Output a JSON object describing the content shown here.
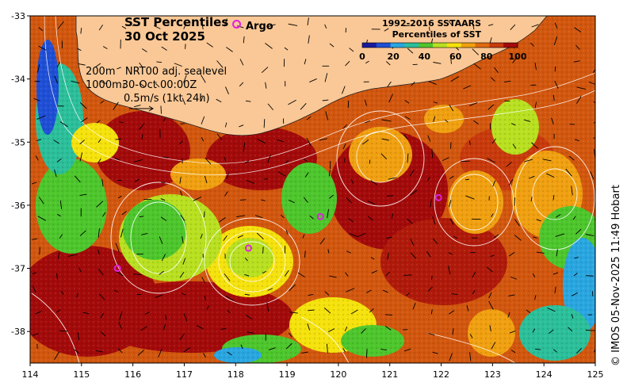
{
  "title_line1": "SST Percentiles",
  "title_line2": "30 Oct 2025",
  "argo_label": "Argo",
  "legend": {
    "title_line1": "1992-2016 SSTAARS",
    "title_line2": "Percentiles of SST",
    "ticks": [
      "0",
      "20",
      "40",
      "60",
      "80",
      "100"
    ],
    "colors": [
      "#1a1a9c",
      "#1f4fd6",
      "#29a6e0",
      "#2bbf9a",
      "#4dc62c",
      "#b8e020",
      "#f5e20c",
      "#f0a010",
      "#e06a10",
      "#c83a0c",
      "#a30a0a"
    ]
  },
  "info": {
    "depth_200": "200m",
    "depth_1000": "1000m",
    "product": "NRT00 adj. sealevel",
    "time": "30-Oct 00:00Z",
    "scale": "0.5m/s (1kt 24h)"
  },
  "credit": "© IMOS 05-Nov-2025 11:49 Hobart",
  "axes": {
    "x_ticks": [
      "114",
      "115",
      "116",
      "117",
      "118",
      "119",
      "120",
      "121",
      "122",
      "123",
      "124",
      "125"
    ],
    "y_ticks": [
      "-33",
      "-34",
      "-35",
      "-36",
      "-37",
      "-38"
    ],
    "x_range": [
      114,
      125
    ],
    "y_range": [
      -38.5,
      -33
    ]
  },
  "land_color": "#fac896",
  "argo_floats": [
    {
      "lon": 115.7,
      "lat": -37.0
    },
    {
      "lon": 118.25,
      "lat": -36.68
    },
    {
      "lon": 119.65,
      "lat": -36.18
    },
    {
      "lon": 121.95,
      "lat": -35.88
    }
  ],
  "eddies": [
    {
      "lon": 118.3,
      "lat": -36.75,
      "kind": "warm"
    },
    {
      "lon": 120.9,
      "lat": -35.3,
      "kind": "warm"
    },
    {
      "lon": 122.6,
      "lat": -36.0,
      "kind": "warm"
    },
    {
      "lon": 124.0,
      "lat": -35.9,
      "kind": "warm"
    },
    {
      "lon": 116.2,
      "lat": -36.6,
      "kind": "cool"
    }
  ]
}
